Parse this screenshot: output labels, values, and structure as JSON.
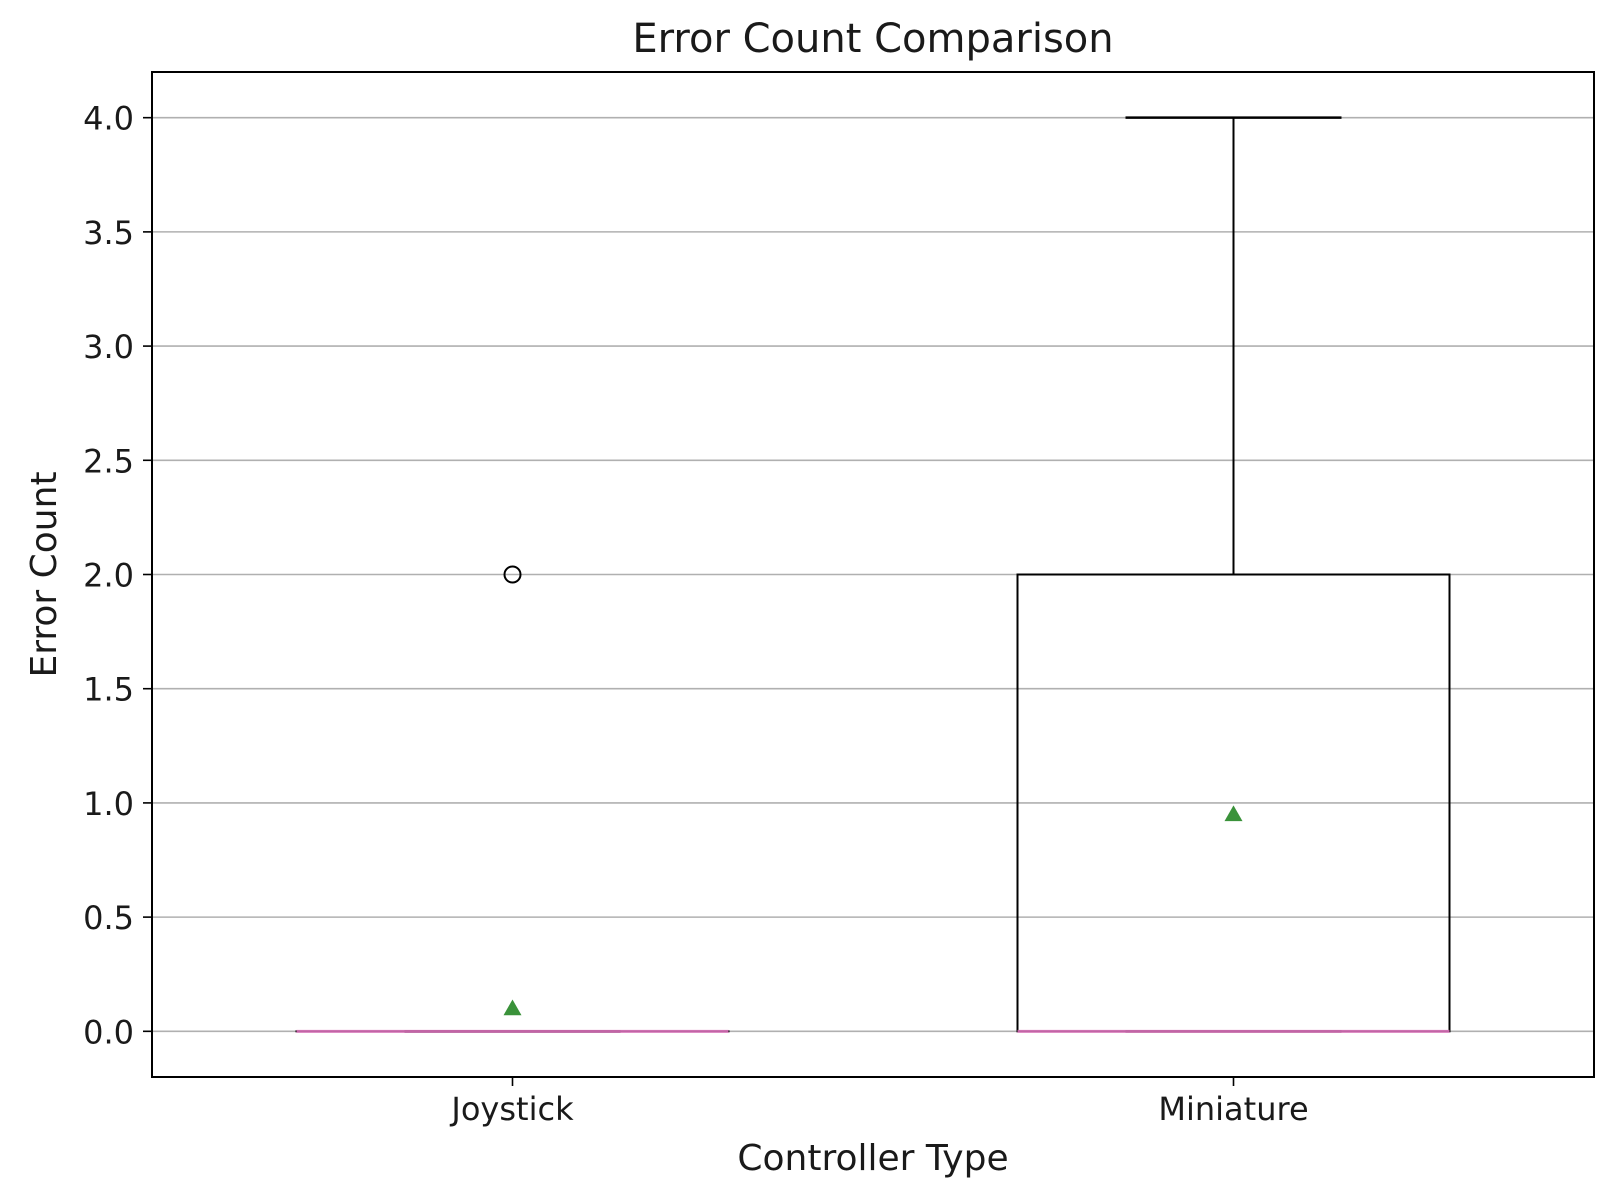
{
  "chart_data": {
    "type": "box",
    "title": "Error Count Comparison",
    "xlabel": "Controller Type",
    "ylabel": "Error Count",
    "ylim": [
      -0.2,
      4.2
    ],
    "yticks": [
      0.0,
      0.5,
      1.0,
      1.5,
      2.0,
      2.5,
      3.0,
      3.5,
      4.0
    ],
    "ytick_labels": [
      "0.0",
      "0.5",
      "1.0",
      "1.5",
      "2.0",
      "2.5",
      "3.0",
      "3.5",
      "4.0"
    ],
    "grid": "horizontal",
    "categories": [
      "Joystick",
      "Miniature"
    ],
    "boxes": [
      {
        "category": "Joystick",
        "q1": 0,
        "median": 0,
        "q3": 0,
        "whisker_low": 0,
        "whisker_high": 0,
        "mean": 0.1,
        "outliers": [
          2.0
        ]
      },
      {
        "category": "Miniature",
        "q1": 0,
        "median": 0,
        "q3": 2.0,
        "whisker_low": 0,
        "whisker_high": 4.0,
        "mean": 0.95,
        "outliers": []
      }
    ],
    "colors": {
      "box_edge": "#000000",
      "median": "#e377c2",
      "mean_marker": "#3a923a",
      "grid": "#b0b0b0"
    }
  }
}
